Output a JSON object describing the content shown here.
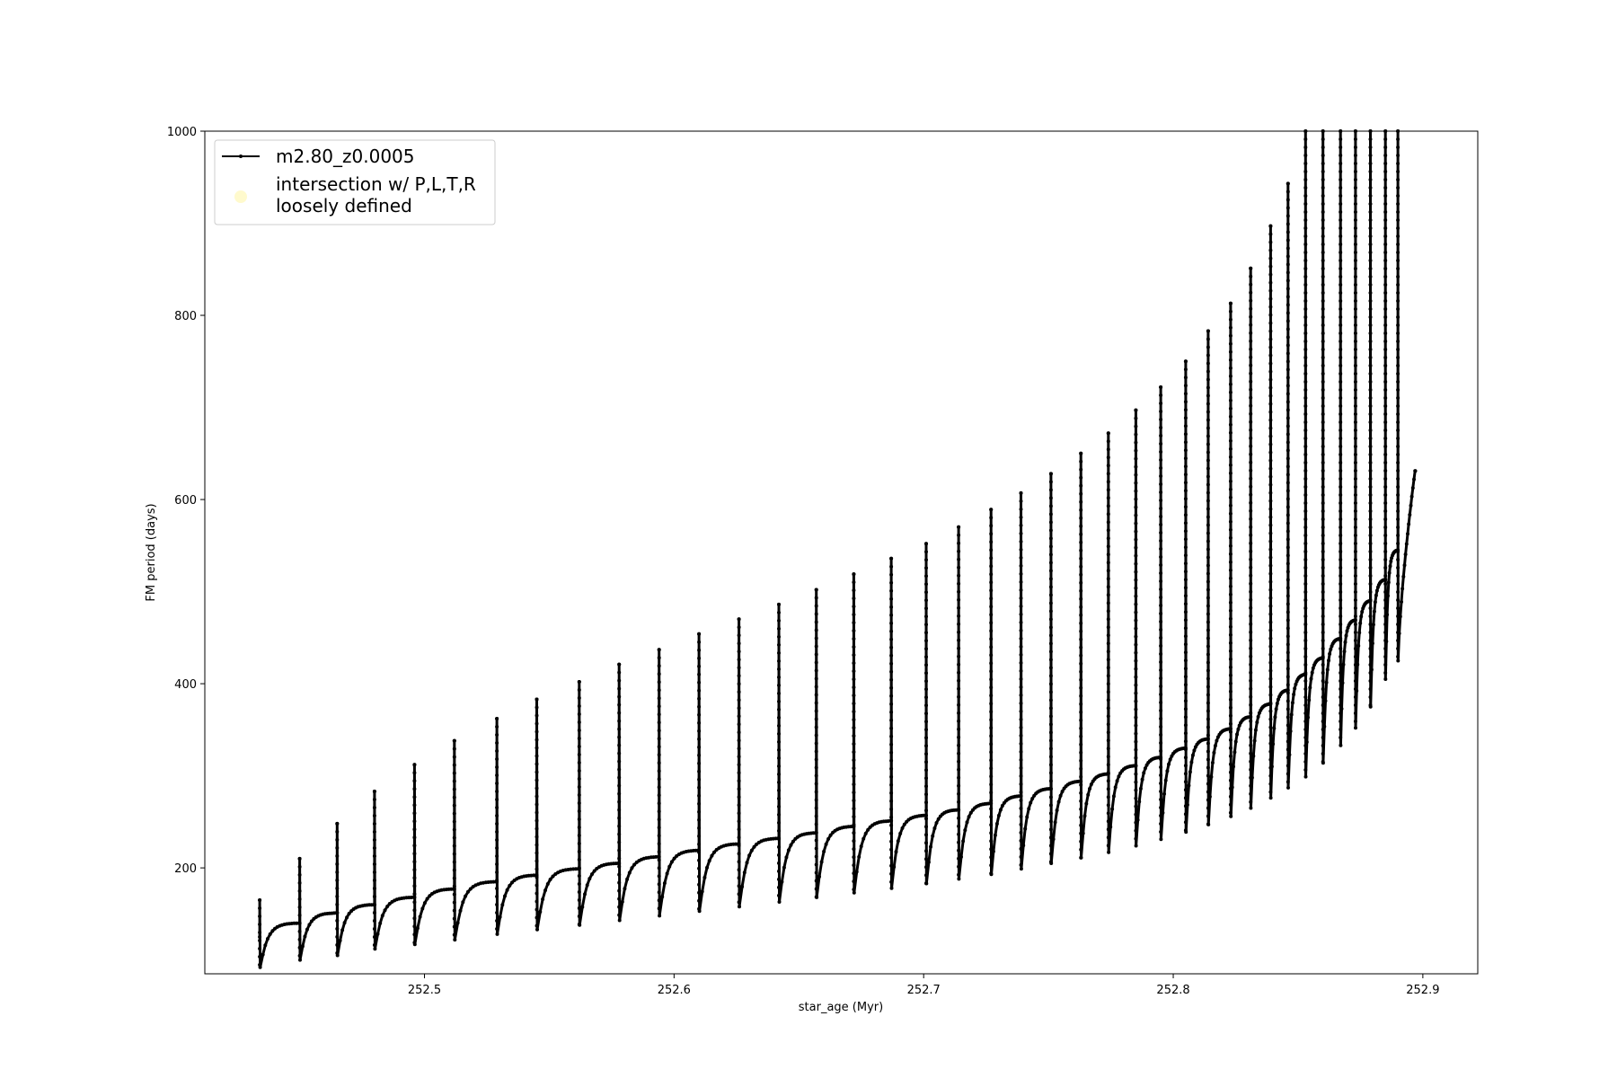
{
  "chart_data": {
    "type": "line",
    "xlabel": "star_age (Myr)",
    "ylabel": "FM period (days)",
    "xlim": [
      252.412,
      252.922
    ],
    "ylim": [
      85,
      1000
    ],
    "xticks": [
      252.5,
      252.6,
      252.7,
      252.8,
      252.9
    ],
    "xtick_labels": [
      "252.5",
      "252.6",
      "252.7",
      "252.8",
      "252.9"
    ],
    "yticks": [
      200,
      400,
      600,
      800,
      1000
    ],
    "ytick_labels": [
      "200",
      "400",
      "600",
      "800",
      "1000"
    ],
    "grid": false,
    "legend_position": "upper-left",
    "series": [
      {
        "name": "m2.80_z0.0005",
        "style": "line-with-point-markers",
        "color": "#000000",
        "pulse_ages": [
          252.434,
          252.45,
          252.465,
          252.48,
          252.496,
          252.512,
          252.529,
          252.545,
          252.562,
          252.578,
          252.594,
          252.61,
          252.626,
          252.642,
          252.657,
          252.672,
          252.687,
          252.701,
          252.714,
          252.727,
          252.739,
          252.751,
          252.763,
          252.774,
          252.785,
          252.795,
          252.805,
          252.814,
          252.823,
          252.831,
          252.839,
          252.846,
          252.853,
          252.86,
          252.867,
          252.873,
          252.879,
          252.885,
          252.89
        ],
        "pulse_peak_period": [
          165,
          210,
          248,
          283,
          312,
          338,
          362,
          383,
          402,
          421,
          437,
          454,
          470,
          486,
          502,
          519,
          536,
          552,
          570,
          589,
          607,
          628,
          650,
          672,
          697,
          722,
          750,
          783,
          813,
          851,
          897,
          943,
          1000,
          1000,
          1000,
          1000,
          1000,
          1000,
          1000
        ],
        "pulse_dip_period": [
          92,
          100,
          105,
          112,
          117,
          122,
          128,
          133,
          138,
          143,
          148,
          153,
          158,
          163,
          168,
          173,
          178,
          183,
          188,
          193,
          199,
          205,
          211,
          217,
          224,
          231,
          239,
          247,
          256,
          265,
          276,
          287,
          299,
          314,
          333,
          352,
          375,
          405,
          425
        ],
        "pulse_plateau_period": [
          140,
          151,
          160,
          168,
          177,
          185,
          192,
          199,
          205,
          212,
          219,
          226,
          232,
          238,
          245,
          251,
          257,
          263,
          270,
          278,
          286,
          294,
          302,
          311,
          320,
          330,
          340,
          351,
          364,
          378,
          393,
          410,
          428,
          449,
          469,
          490,
          513,
          545,
          565
        ],
        "end_point": [
          252.897,
          631
        ]
      },
      {
        "name": "intersection w/ P,L,T,R\nloosely defined",
        "style": "marker",
        "color": "#fffacd",
        "x": [],
        "y": []
      }
    ]
  },
  "legend": {
    "entries": [
      {
        "label": "m2.80_z0.0005",
        "marker": "line",
        "color": "#000000"
      },
      {
        "label_lines": [
          "intersection w/ P,L,T,R",
          "loosely defined"
        ],
        "marker": "circle",
        "color": "#fffacd"
      }
    ]
  }
}
